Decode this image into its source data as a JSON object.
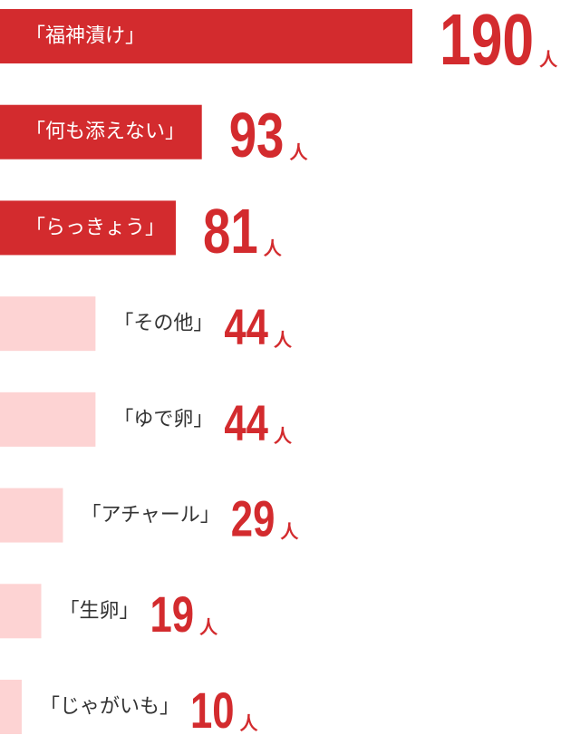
{
  "chart_data": {
    "type": "bar",
    "orientation": "horizontal",
    "categories": [
      "「福神漬け」",
      "「何も添えない」",
      "「らっきょう」",
      "「その他」",
      "「ゆで卵」",
      "「アチャール」",
      "「生卵」",
      "「じゃがいも」"
    ],
    "values": [
      190,
      93,
      81,
      44,
      44,
      29,
      19,
      10
    ],
    "highlighted": [
      true,
      true,
      true,
      false,
      false,
      false,
      false,
      false
    ],
    "color": "#d32b2e",
    "muted_color": "#fdd3d3",
    "unit": "人",
    "xlim": [
      0,
      190
    ]
  }
}
